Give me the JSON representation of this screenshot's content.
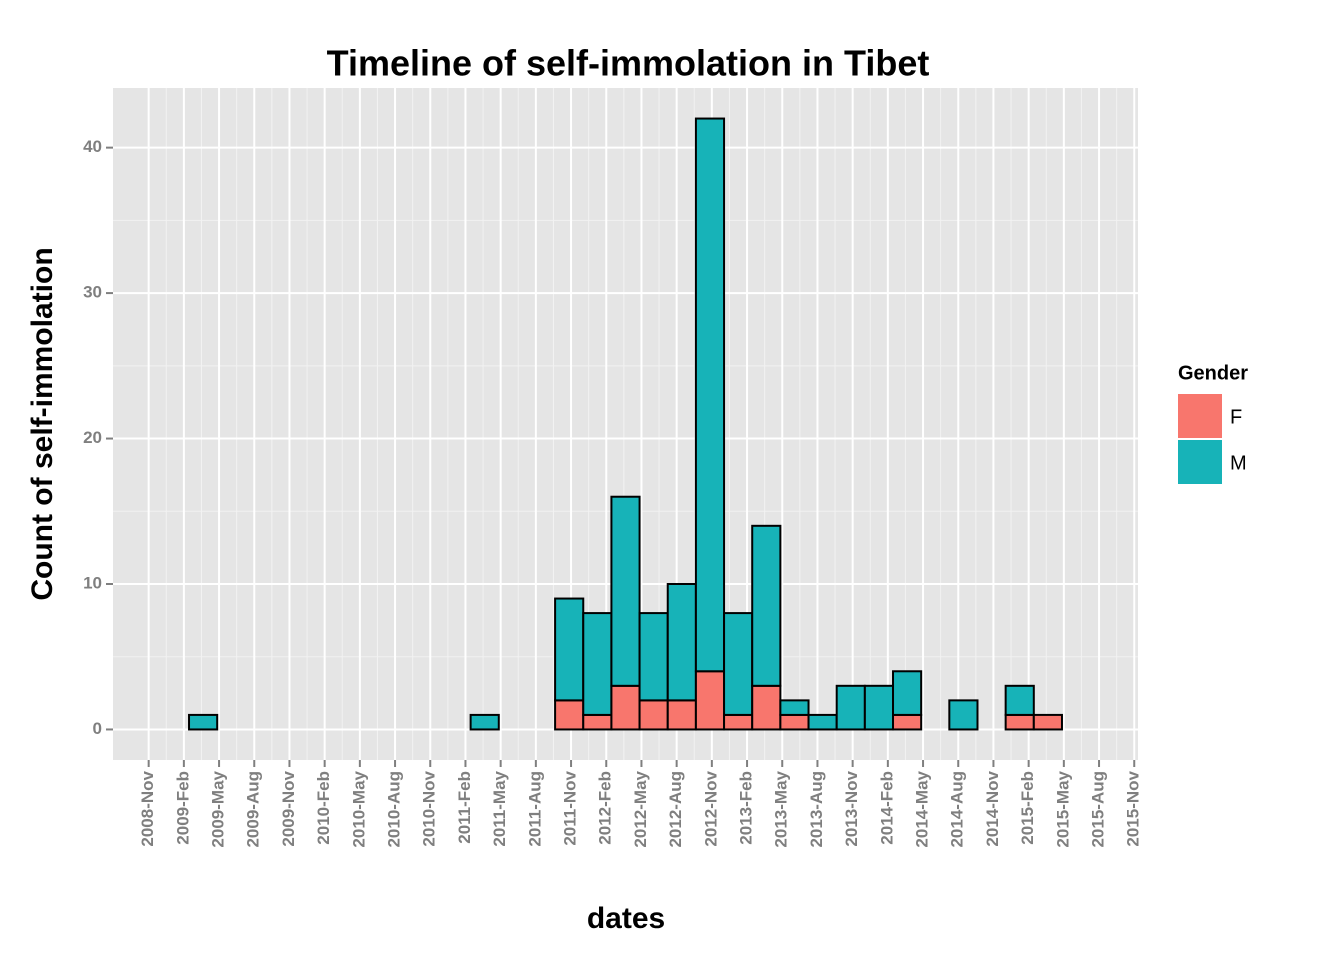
{
  "chart_data": {
    "type": "histogram",
    "title": "Timeline of self-immolation in Tibet",
    "x_label": "dates",
    "y_label": "Count of self-immolation",
    "legend_title": "Gender",
    "bins": [
      2008.92,
      2009.12,
      2009.32,
      2009.52,
      2009.72,
      2009.92,
      2010.12,
      2010.32,
      2010.52,
      2010.72,
      2010.92,
      2011.12,
      2011.32,
      2011.52,
      2011.72,
      2011.92,
      2012.12,
      2012.32,
      2012.52,
      2012.72,
      2012.92,
      2013.12,
      2013.32,
      2013.52,
      2013.72,
      2013.92,
      2014.12,
      2014.32,
      2014.52,
      2014.72,
      2014.92,
      2015.12,
      2015.32,
      2015.52
    ],
    "series": [
      {
        "name": "F",
        "color": "#F8766D",
        "values": [
          0,
          0,
          0,
          0,
          0,
          0,
          0,
          0,
          0,
          0,
          0,
          0,
          0,
          0,
          2,
          1,
          3,
          2,
          2,
          4,
          1,
          3,
          1,
          0,
          0,
          0,
          1,
          0,
          0,
          0,
          1,
          1,
          0
        ]
      },
      {
        "name": "M",
        "color": "#17B3B8",
        "values": [
          0,
          1,
          0,
          0,
          0,
          0,
          0,
          0,
          0,
          0,
          0,
          1,
          0,
          0,
          7,
          7,
          13,
          6,
          8,
          38,
          7,
          11,
          1,
          1,
          3,
          3,
          3,
          0,
          2,
          0,
          2,
          0,
          0
        ]
      }
    ],
    "xlim": [
      2008.58,
      2015.86
    ],
    "xticks": [
      {
        "value": 2008.8333,
        "label": "2008-Nov"
      },
      {
        "value": 2009.0833,
        "label": "2009-Feb"
      },
      {
        "value": 2009.3333,
        "label": "2009-May"
      },
      {
        "value": 2009.5833,
        "label": "2009-Aug"
      },
      {
        "value": 2009.8333,
        "label": "2009-Nov"
      },
      {
        "value": 2010.0833,
        "label": "2010-Feb"
      },
      {
        "value": 2010.3333,
        "label": "2010-May"
      },
      {
        "value": 2010.5833,
        "label": "2010-Aug"
      },
      {
        "value": 2010.8333,
        "label": "2010-Nov"
      },
      {
        "value": 2011.0833,
        "label": "2011-Feb"
      },
      {
        "value": 2011.3333,
        "label": "2011-May"
      },
      {
        "value": 2011.5833,
        "label": "2011-Aug"
      },
      {
        "value": 2011.8333,
        "label": "2011-Nov"
      },
      {
        "value": 2012.0833,
        "label": "2012-Feb"
      },
      {
        "value": 2012.3333,
        "label": "2012-May"
      },
      {
        "value": 2012.5833,
        "label": "2012-Aug"
      },
      {
        "value": 2012.8333,
        "label": "2012-Nov"
      },
      {
        "value": 2013.0833,
        "label": "2013-Feb"
      },
      {
        "value": 2013.3333,
        "label": "2013-May"
      },
      {
        "value": 2013.5833,
        "label": "2013-Aug"
      },
      {
        "value": 2013.8333,
        "label": "2013-Nov"
      },
      {
        "value": 2014.0833,
        "label": "2014-Feb"
      },
      {
        "value": 2014.3333,
        "label": "2014-May"
      },
      {
        "value": 2014.5833,
        "label": "2014-Aug"
      },
      {
        "value": 2014.8333,
        "label": "2014-Nov"
      },
      {
        "value": 2015.0833,
        "label": "2015-Feb"
      },
      {
        "value": 2015.3333,
        "label": "2015-May"
      },
      {
        "value": 2015.5833,
        "label": "2015-Aug"
      },
      {
        "value": 2015.8333,
        "label": "2015-Nov"
      }
    ],
    "ylim": [
      -2.1,
      44.1
    ],
    "yticks": [
      0,
      10,
      20,
      30,
      40
    ],
    "grid": true
  }
}
